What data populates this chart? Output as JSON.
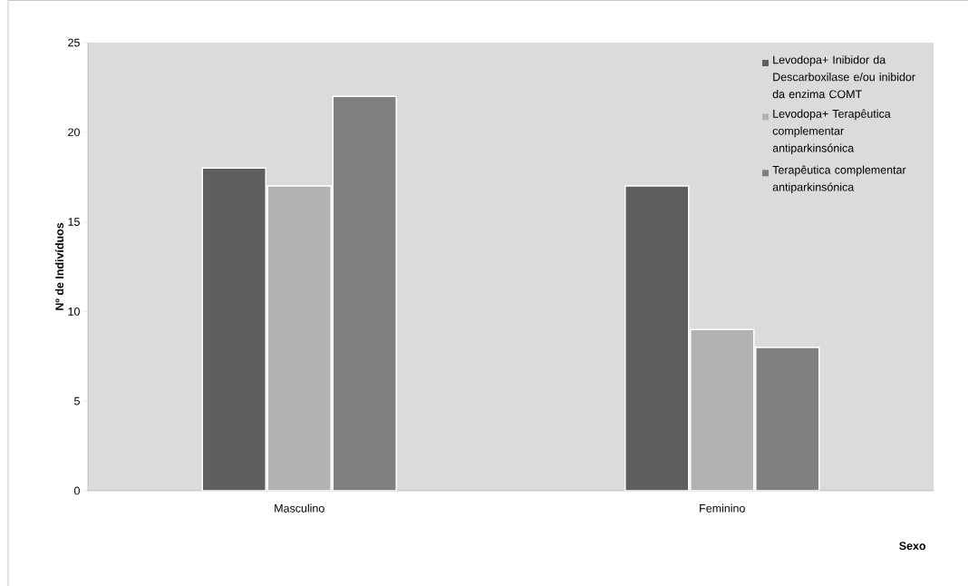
{
  "chart_data": {
    "type": "bar",
    "xlabel": "Sexo",
    "ylabel": "Nº de Indivíduos",
    "categories": [
      "Masculino",
      "Feminino"
    ],
    "series": [
      {
        "name": "Levodopa+ Inibidor da Descarboxilase e/ou inibidor da enzima COMT",
        "color": "#5f5f5f",
        "values": [
          18,
          17
        ]
      },
      {
        "name": "Levodopa+ Terapêutica complementar antiparkinsónica",
        "color": "#b2b2b2",
        "values": [
          17,
          9
        ]
      },
      {
        "name": "Terapêutica complementar antiparkinsónica",
        "color": "#808080",
        "values": [
          22,
          8
        ]
      }
    ],
    "ylim": [
      0,
      25
    ],
    "yticks": [
      0,
      5,
      10,
      15,
      20,
      25
    ],
    "legend": "top right"
  }
}
